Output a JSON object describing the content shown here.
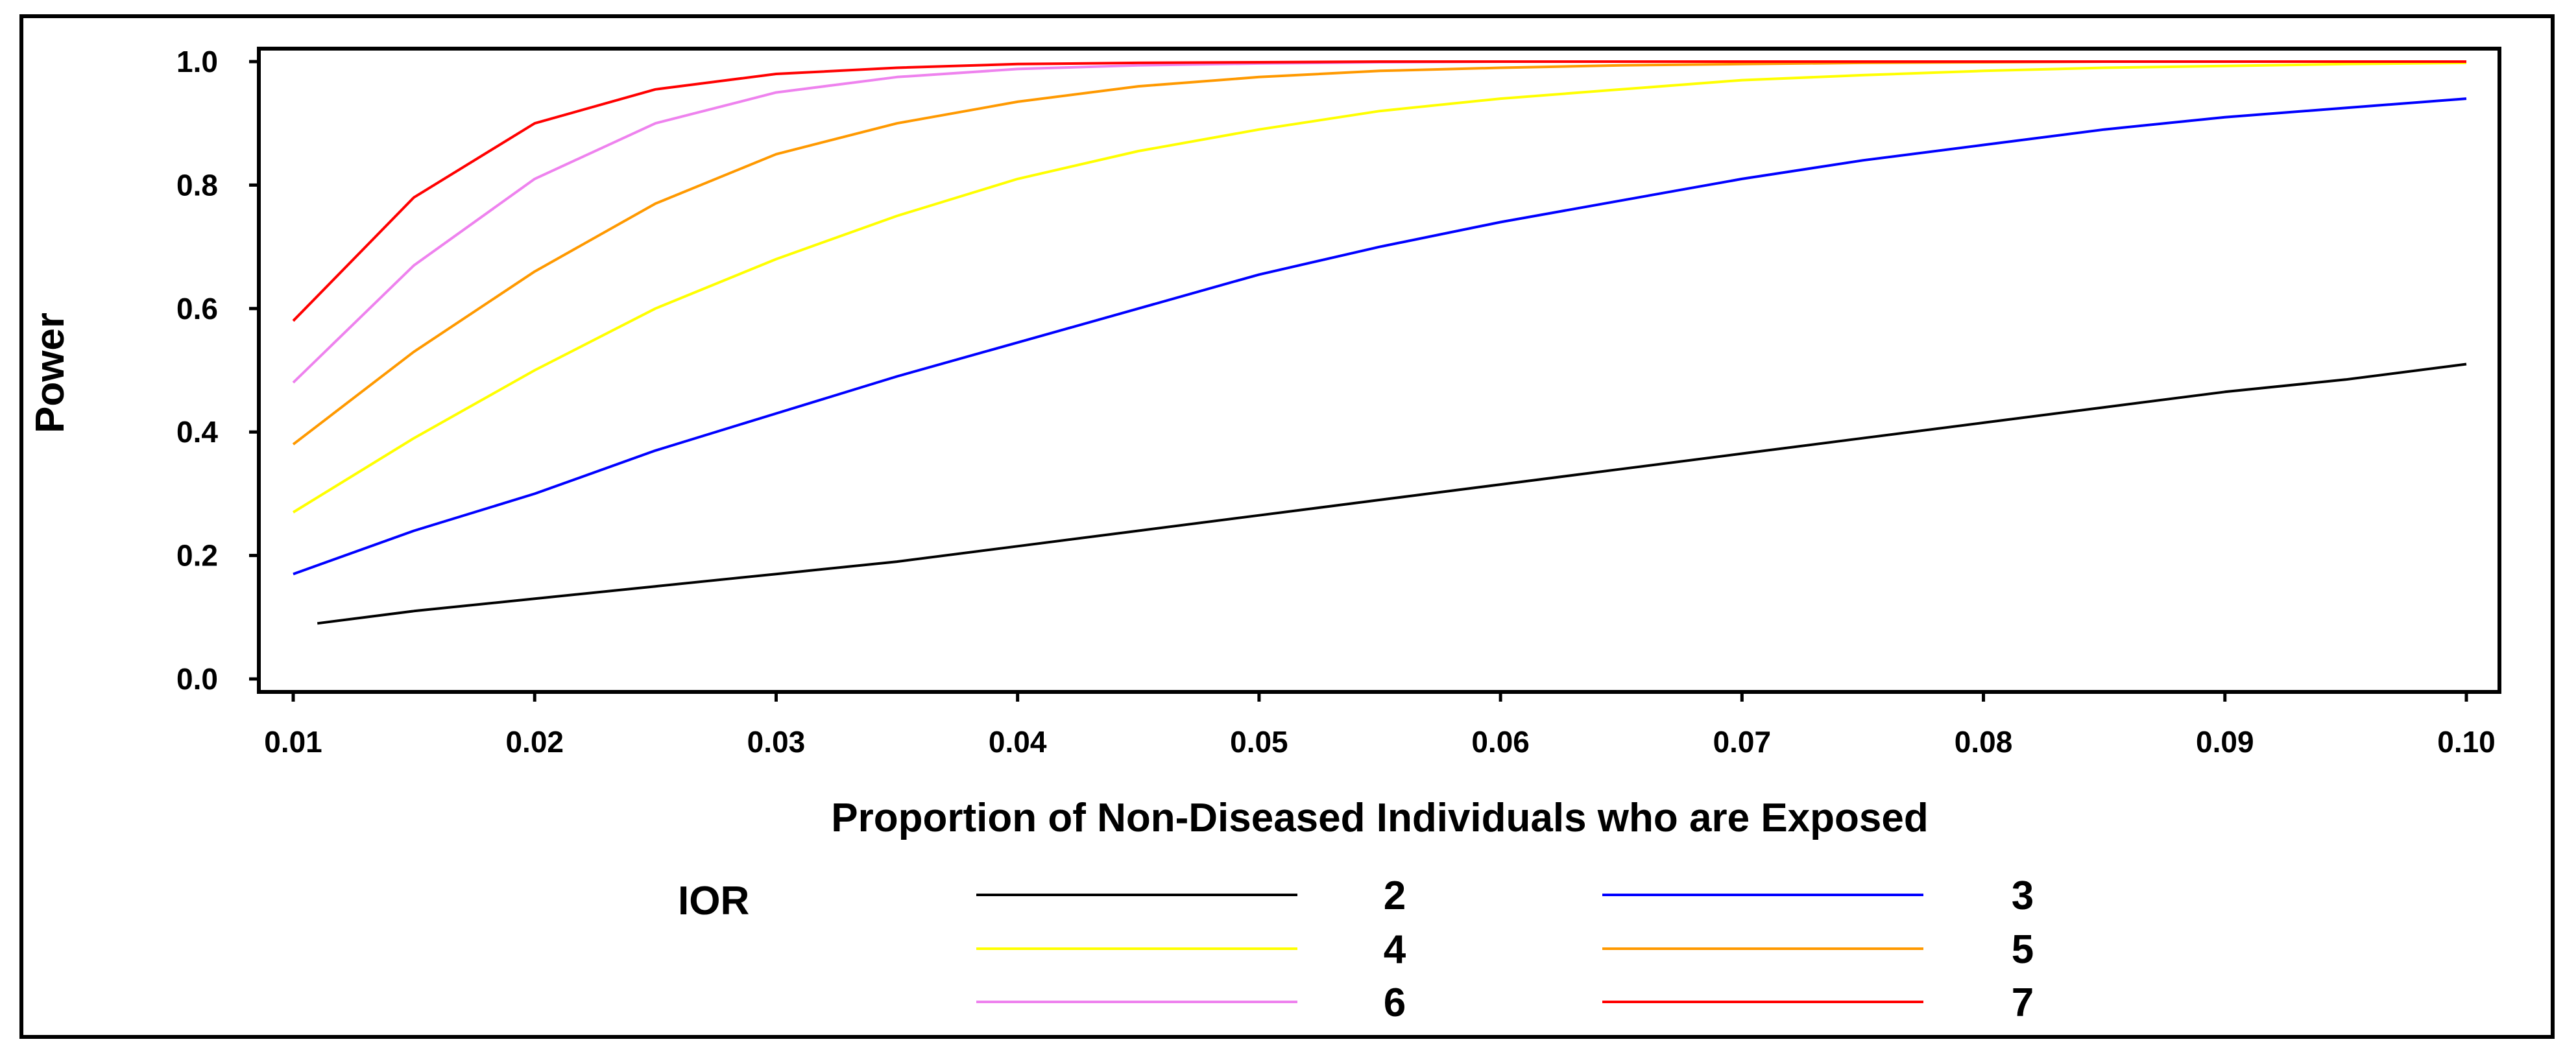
{
  "chart_data": {
    "type": "line",
    "title": "",
    "xlabel": "Proportion of Non-Diseased Individuals who are Exposed",
    "ylabel": "Power",
    "xlim": [
      0.01,
      0.1
    ],
    "ylim": [
      0.0,
      1.0
    ],
    "x_ticks": [
      "0.01",
      "0.02",
      "0.03",
      "0.04",
      "0.05",
      "0.06",
      "0.07",
      "0.08",
      "0.09",
      "0.10"
    ],
    "y_ticks": [
      "0.0",
      "0.2",
      "0.4",
      "0.6",
      "0.8",
      "1.0"
    ],
    "legend_title": "IOR",
    "legend_position": "bottom",
    "x": [
      0.01,
      0.015,
      0.02,
      0.025,
      0.03,
      0.035,
      0.04,
      0.045,
      0.05,
      0.055,
      0.06,
      0.065,
      0.07,
      0.075,
      0.08,
      0.085,
      0.09,
      0.095,
      0.1
    ],
    "series": [
      {
        "name": "2",
        "color": "#000000",
        "start_x": 0.011,
        "values": [
          0.09,
          0.11,
          0.13,
          0.15,
          0.17,
          0.19,
          0.215,
          0.24,
          0.265,
          0.29,
          0.315,
          0.34,
          0.365,
          0.39,
          0.415,
          0.44,
          0.465,
          0.485,
          0.51
        ]
      },
      {
        "name": "3",
        "color": "#0000ff",
        "values": [
          0.17,
          0.24,
          0.3,
          0.37,
          0.43,
          0.49,
          0.545,
          0.6,
          0.655,
          0.7,
          0.74,
          0.775,
          0.81,
          0.84,
          0.865,
          0.89,
          0.91,
          0.925,
          0.94
        ]
      },
      {
        "name": "4",
        "color": "#ffff00",
        "values": [
          0.27,
          0.39,
          0.5,
          0.6,
          0.68,
          0.75,
          0.81,
          0.855,
          0.89,
          0.92,
          0.94,
          0.955,
          0.97,
          0.978,
          0.985,
          0.99,
          0.993,
          0.996,
          0.998
        ]
      },
      {
        "name": "5",
        "color": "#ff9900",
        "values": [
          0.38,
          0.53,
          0.66,
          0.77,
          0.85,
          0.9,
          0.935,
          0.96,
          0.975,
          0.985,
          0.99,
          0.994,
          0.996,
          0.998,
          0.999,
          1.0,
          1.0,
          1.0,
          1.0
        ]
      },
      {
        "name": "6",
        "color": "#ee82ee",
        "values": [
          0.48,
          0.67,
          0.81,
          0.9,
          0.95,
          0.975,
          0.988,
          0.994,
          0.997,
          0.999,
          1.0,
          1.0,
          1.0,
          1.0,
          1.0,
          1.0,
          1.0,
          1.0,
          1.0
        ]
      },
      {
        "name": "7",
        "color": "#ff0000",
        "values": [
          0.58,
          0.78,
          0.9,
          0.955,
          0.98,
          0.99,
          0.996,
          0.998,
          0.999,
          1.0,
          1.0,
          1.0,
          1.0,
          1.0,
          1.0,
          1.0,
          1.0,
          1.0,
          1.0
        ]
      }
    ]
  }
}
